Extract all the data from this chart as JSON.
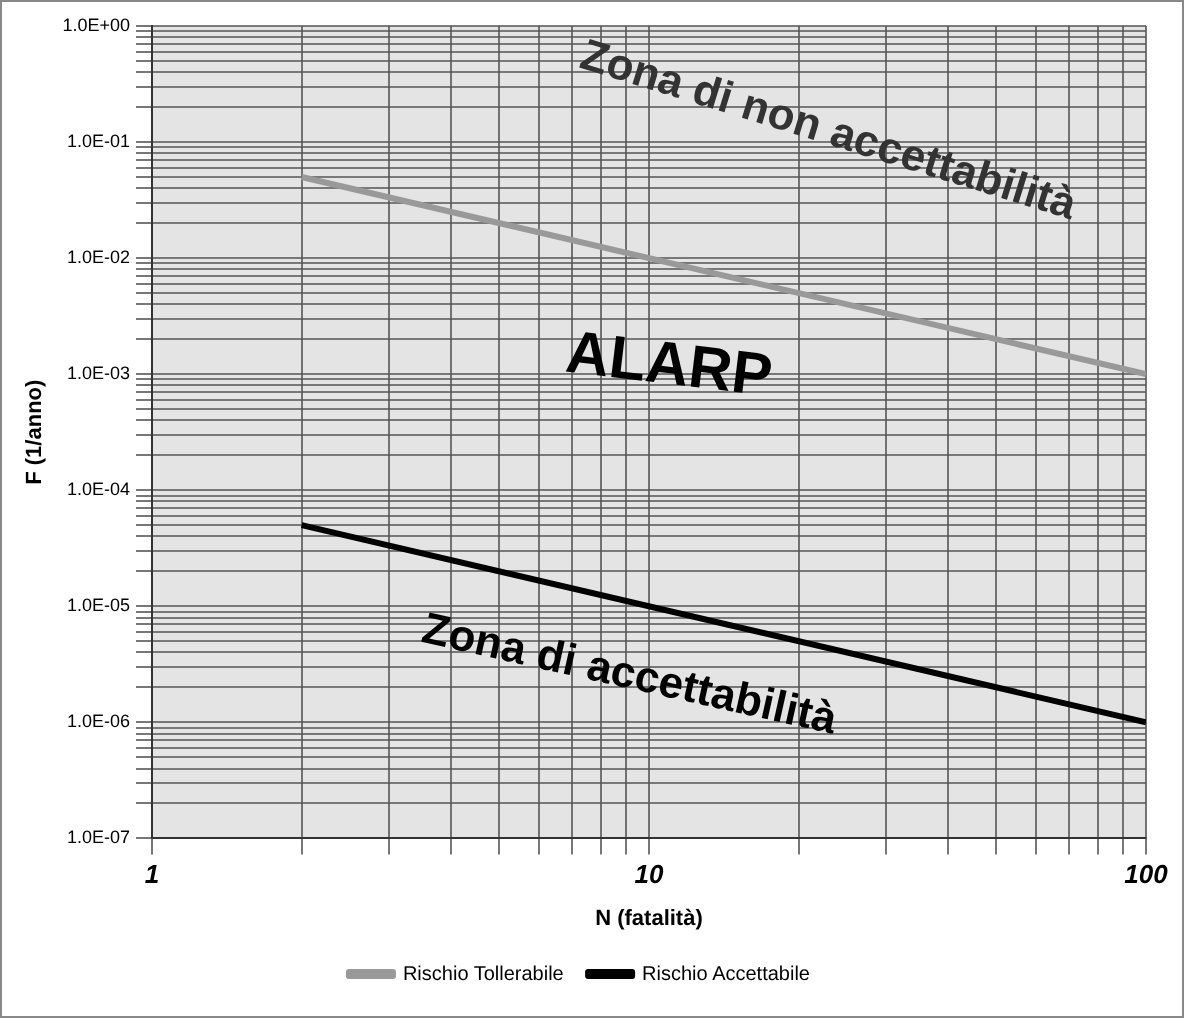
{
  "chart_data": {
    "type": "line",
    "xlabel": "N (fatalità)",
    "ylabel": "F (1/anno)",
    "log": "xy",
    "grid": true,
    "legend": "bottom",
    "marker": "none",
    "line_style": "solid",
    "xlim": [
      1,
      100
    ],
    "ylim": [
      1e-07,
      1
    ],
    "xticks": [
      1,
      {
        "value": 2,
        "label": null
      },
      {
        "value": 3,
        "label": null
      },
      {
        "value": 4,
        "label": null
      },
      {
        "value": 5,
        "label": null
      },
      {
        "value": 6,
        "label": null
      },
      {
        "value": 7,
        "label": null
      },
      {
        "value": 8,
        "label": null
      },
      {
        "value": 9,
        "label": null
      },
      10,
      {
        "value": 20,
        "label": null
      },
      {
        "value": 30,
        "label": null
      },
      {
        "value": 40,
        "label": null
      },
      {
        "value": 50,
        "label": null
      },
      {
        "value": 60,
        "label": null
      },
      {
        "value": 70,
        "label": null
      },
      {
        "value": 80,
        "label": null
      },
      {
        "value": 90,
        "label": null
      },
      100
    ],
    "yticks": [
      {
        "value": 1e-07,
        "label": "1.0E-07"
      },
      {
        "value": 2e-07,
        "label": null
      },
      {
        "value": 3e-07,
        "label": null
      },
      {
        "value": 4e-07,
        "label": null
      },
      {
        "value": 5e-07,
        "label": null
      },
      {
        "value": 6e-07,
        "label": null
      },
      {
        "value": 7e-07,
        "label": null
      },
      {
        "value": 8e-07,
        "label": null
      },
      {
        "value": 9e-07,
        "label": null
      },
      {
        "value": 1e-06,
        "label": "1.0E-06"
      },
      {
        "value": 2e-06,
        "label": null
      },
      {
        "value": 3e-06,
        "label": null
      },
      {
        "value": 4e-06,
        "label": null
      },
      {
        "value": 5e-06,
        "label": null
      },
      {
        "value": 6e-06,
        "label": null
      },
      {
        "value": 7e-06,
        "label": null
      },
      {
        "value": 8e-06,
        "label": null
      },
      {
        "value": 9e-06,
        "label": null
      },
      {
        "value": 1e-05,
        "label": "1.0E-05"
      },
      {
        "value": 2e-05,
        "label": null
      },
      {
        "value": 3e-05,
        "label": null
      },
      {
        "value": 4e-05,
        "label": null
      },
      {
        "value": 5e-05,
        "label": null
      },
      {
        "value": 6e-05,
        "label": null
      },
      {
        "value": 7e-05,
        "label": null
      },
      {
        "value": 8e-05,
        "label": null
      },
      {
        "value": 9e-05,
        "label": null
      },
      {
        "value": 0.0001,
        "label": "1.0E-04"
      },
      {
        "value": 0.0002,
        "label": null
      },
      {
        "value": 0.0003,
        "label": null
      },
      {
        "value": 0.0004,
        "label": null
      },
      {
        "value": 0.0005,
        "label": null
      },
      {
        "value": 0.0006,
        "label": null
      },
      {
        "value": 0.0007,
        "label": null
      },
      {
        "value": 0.0008,
        "label": null
      },
      {
        "value": 0.0009,
        "label": null
      },
      {
        "value": 0.001,
        "label": "1.0E-03"
      },
      {
        "value": 0.002,
        "label": null
      },
      {
        "value": 0.003,
        "label": null
      },
      {
        "value": 0.004,
        "label": null
      },
      {
        "value": 0.005,
        "label": null
      },
      {
        "value": 0.006,
        "label": null
      },
      {
        "value": 0.007,
        "label": null
      },
      {
        "value": 0.008,
        "label": null
      },
      {
        "value": 0.009,
        "label": null
      },
      {
        "value": 0.01,
        "label": "1.0E-02"
      },
      {
        "value": 0.02,
        "label": null
      },
      {
        "value": 0.03,
        "label": null
      },
      {
        "value": 0.04,
        "label": null
      },
      {
        "value": 0.05,
        "label": null
      },
      {
        "value": 0.06,
        "label": null
      },
      {
        "value": 0.07,
        "label": null
      },
      {
        "value": 0.08,
        "label": null
      },
      {
        "value": 0.09,
        "label": null
      },
      {
        "value": 0.1,
        "label": "1.0E-01"
      },
      {
        "value": 0.2,
        "label": null
      },
      {
        "value": 0.3,
        "label": null
      },
      {
        "value": 0.4,
        "label": null
      },
      {
        "value": 0.5,
        "label": null
      },
      {
        "value": 0.6,
        "label": null
      },
      {
        "value": 0.7,
        "label": null
      },
      {
        "value": 0.8,
        "label": null
      },
      {
        "value": 0.9,
        "label": null
      },
      {
        "value": 1,
        "label": "1.0E+00"
      }
    ],
    "series": [
      {
        "name": "Rischio Tollerabile",
        "color": "#999999",
        "values": [
          0.05,
          0.001
        ]
      },
      {
        "name": "Rischio Accettabile",
        "color": "#000000",
        "values": [
          5e-05,
          1e-06
        ]
      }
    ],
    "x": [
      2,
      100
    ],
    "annotations": [
      "Zona di non accettabilità",
      "ALARP",
      "Zona di accettabilità"
    ]
  }
}
